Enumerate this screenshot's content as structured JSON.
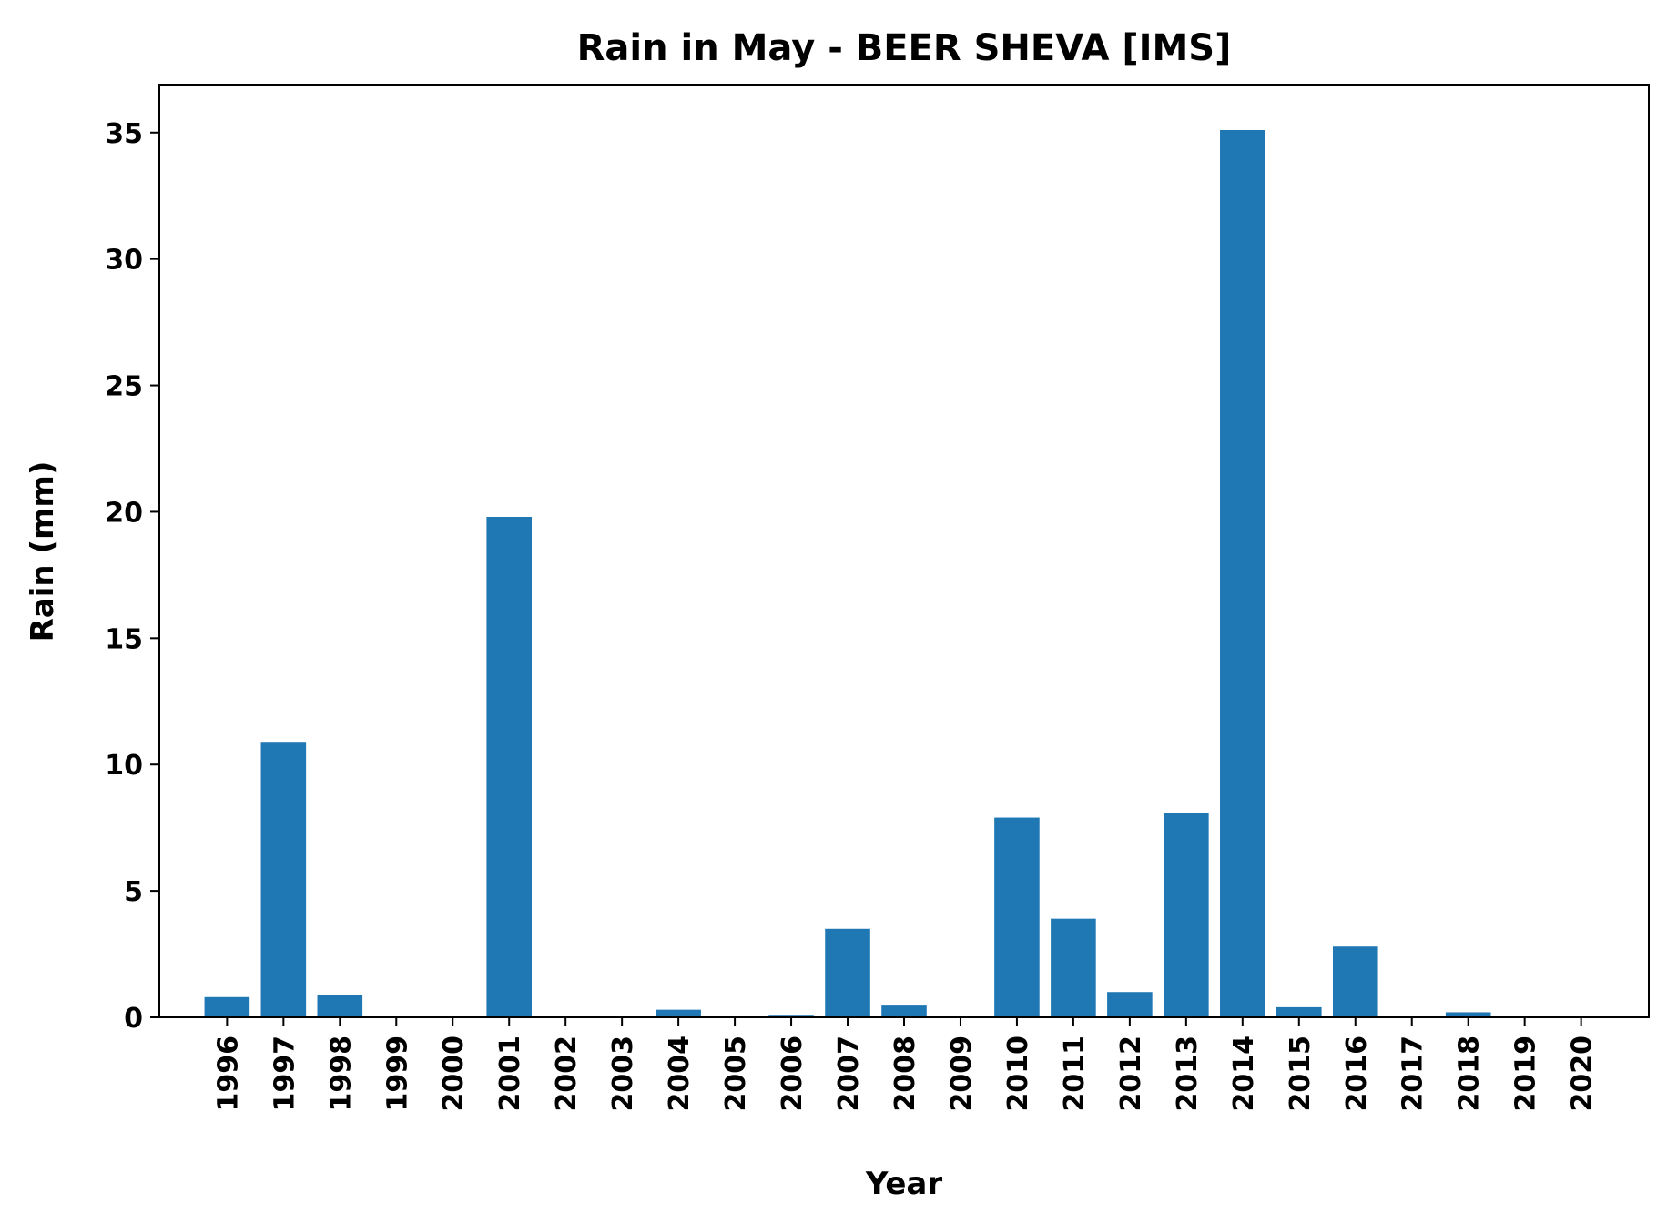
{
  "chart_data": {
    "type": "bar",
    "title": "Rain in May - BEER SHEVA [IMS]",
    "xlabel": "Year",
    "ylabel": "Rain (mm)",
    "categories": [
      "1996",
      "1997",
      "1998",
      "1999",
      "2000",
      "2001",
      "2002",
      "2003",
      "2004",
      "2005",
      "2006",
      "2007",
      "2008",
      "2009",
      "2010",
      "2011",
      "2012",
      "2013",
      "2014",
      "2015",
      "2016",
      "2017",
      "2018",
      "2019",
      "2020"
    ],
    "values": [
      0.8,
      10.9,
      0.9,
      0.0,
      0.0,
      19.8,
      0.0,
      0.0,
      0.3,
      0.0,
      0.1,
      3.5,
      0.5,
      0.0,
      7.9,
      3.9,
      1.0,
      8.1,
      35.1,
      0.4,
      2.8,
      0.0,
      0.2,
      0.0,
      0.0
    ],
    "ylim": [
      0,
      36.9
    ],
    "yticks": [
      0,
      5,
      10,
      15,
      20,
      25,
      30,
      35
    ],
    "bar_color": "#1f77b4",
    "grid": false,
    "legend": "none"
  }
}
